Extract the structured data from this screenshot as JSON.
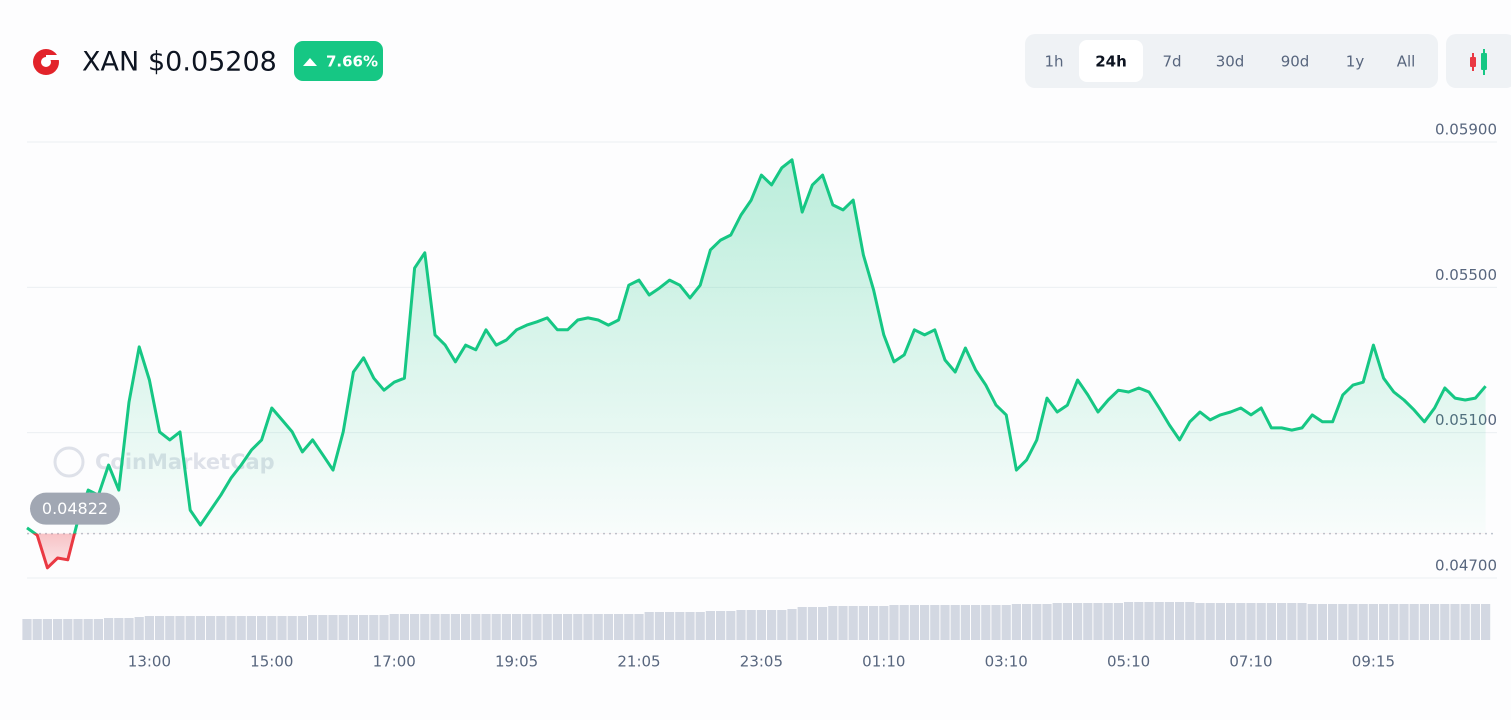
{
  "header": {
    "symbol": "XAN",
    "price": "$0.05208",
    "change": "7.66%"
  },
  "timeframes": {
    "options": [
      "1h",
      "24h",
      "7d",
      "30d",
      "90d",
      "1y",
      "All"
    ],
    "selected": "24h"
  },
  "chart_data": {
    "type": "line",
    "watermark": "CoinMarketCap",
    "color_up": "#16c784",
    "color_down": "#ea3943",
    "grid": true,
    "baseline": 0.04822,
    "ylim": [
      0.047,
      0.059
    ],
    "yticks": [
      {
        "value": 0.047,
        "label": "0.04700"
      },
      {
        "value": 0.051,
        "label": "0.05100"
      },
      {
        "value": 0.055,
        "label": "0.05500"
      },
      {
        "value": 0.059,
        "label": "0.05900"
      }
    ],
    "xticks": [
      {
        "value": 12,
        "label": "13:00"
      },
      {
        "value": 24,
        "label": "15:00"
      },
      {
        "value": 36,
        "label": "17:00"
      },
      {
        "value": 48,
        "label": "19:05"
      },
      {
        "value": 60,
        "label": "21:05"
      },
      {
        "value": 72,
        "label": "23:05"
      },
      {
        "value": 84,
        "label": "01:10"
      },
      {
        "value": 96,
        "label": "03:10"
      },
      {
        "value": 108,
        "label": "05:10"
      },
      {
        "value": 120,
        "label": "07:10"
      },
      {
        "value": 132,
        "label": "09:15"
      }
    ],
    "values": [
      0.04838,
      0.04818,
      0.04728,
      0.04755,
      0.0475,
      0.0486,
      0.04942,
      0.04928,
      0.05011,
      0.04942,
      0.05184,
      0.05336,
      0.05245,
      0.05102,
      0.0508,
      0.05102,
      0.04887,
      0.04846,
      0.04887,
      0.04928,
      0.04975,
      0.05011,
      0.05052,
      0.0508,
      0.05168,
      0.05135,
      0.05102,
      0.05047,
      0.0508,
      0.05039,
      0.04997,
      0.05102,
      0.05267,
      0.05306,
      0.0525,
      0.05217,
      0.05239,
      0.0525,
      0.05553,
      0.05595,
      0.05369,
      0.05341,
      0.05295,
      0.05341,
      0.05328,
      0.05383,
      0.05341,
      0.05355,
      0.05383,
      0.05396,
      0.05405,
      0.05416,
      0.05383,
      0.05383,
      0.0541,
      0.05416,
      0.0541,
      0.05396,
      0.0541,
      0.05506,
      0.0552,
      0.05479,
      0.05498,
      0.0552,
      0.05506,
      0.05471,
      0.05506,
      0.05603,
      0.0563,
      0.05644,
      0.05699,
      0.0574,
      0.05809,
      0.05782,
      0.05829,
      0.05851,
      0.05707,
      0.05782,
      0.05809,
      0.05727,
      0.05713,
      0.0574,
      0.05589,
      0.05493,
      0.05369,
      0.05295,
      0.05314,
      0.05383,
      0.05369,
      0.05383,
      0.053,
      0.05267,
      0.05333,
      0.05273,
      0.05231,
      0.05176,
      0.05149,
      0.04997,
      0.05025,
      0.0508,
      0.05195,
      0.05157,
      0.05176,
      0.05245,
      0.05204,
      0.05157,
      0.0519,
      0.05217,
      0.05212,
      0.05223,
      0.05212,
      0.05168,
      0.05121,
      0.0508,
      0.0513,
      0.05157,
      0.05135,
      0.05149,
      0.05157,
      0.05168,
      0.05149,
      0.05168,
      0.05113,
      0.05113,
      0.05107,
      0.05113,
      0.05149,
      0.0513,
      0.0513,
      0.05204,
      0.05231,
      0.05239,
      0.05341,
      0.0525,
      0.05212,
      0.0519,
      0.05162,
      0.0513,
      0.05168,
      0.05223,
      0.05195,
      0.0519,
      0.05195,
      0.05228
    ],
    "volume": {
      "color": "#d3d8e2",
      "vlim": [
        0,
        40
      ],
      "values": [
        21,
        21,
        21,
        21,
        21,
        21,
        21,
        21,
        22,
        22,
        22,
        23,
        24,
        24,
        24,
        24,
        24,
        24,
        24,
        24,
        24,
        24,
        24,
        24,
        24,
        24,
        24,
        24,
        25,
        25,
        25,
        25,
        25,
        25,
        25,
        25,
        26,
        26,
        26,
        26,
        26,
        26,
        26,
        26,
        26,
        26,
        26,
        26,
        26,
        26,
        26,
        26,
        26,
        26,
        26,
        26,
        26,
        26,
        26,
        26,
        26,
        28,
        28,
        28,
        28,
        28,
        28,
        29,
        29,
        29,
        30,
        30,
        30,
        30,
        30,
        31,
        33,
        33,
        33,
        34,
        34,
        34,
        34,
        34,
        34,
        35,
        35,
        35,
        35,
        35,
        35,
        35,
        35,
        35,
        35,
        35,
        35,
        36,
        36,
        36,
        36,
        37,
        37,
        37,
        37,
        37,
        37,
        37,
        38,
        38,
        38,
        38,
        38,
        38,
        38,
        37,
        37,
        37,
        37,
        37,
        37,
        37,
        37,
        37,
        37,
        37,
        36,
        36,
        36,
        36,
        36,
        36,
        36,
        36,
        36,
        36,
        36,
        36,
        36,
        36,
        36,
        36,
        36,
        36
      ]
    }
  }
}
